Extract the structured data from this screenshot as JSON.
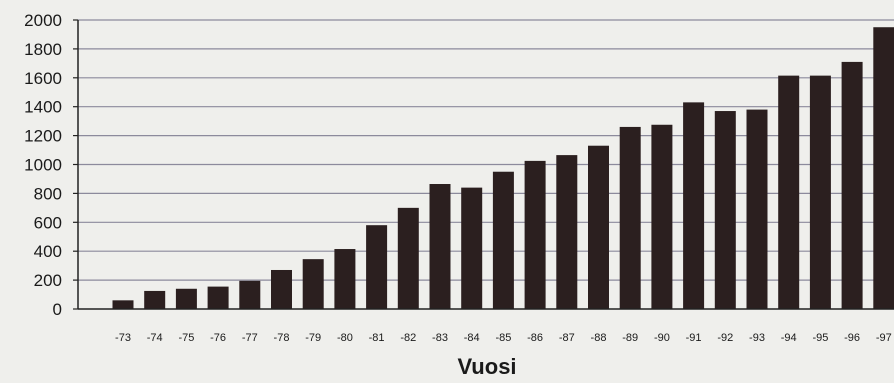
{
  "chart_data": {
    "type": "bar",
    "title": "",
    "xlabel": "Vuosi",
    "ylabel": "",
    "ylim": [
      0,
      2000
    ],
    "yticks": [
      0,
      200,
      400,
      600,
      800,
      1000,
      1200,
      1400,
      1600,
      1800,
      2000
    ],
    "grid": true,
    "categories": [
      "-73",
      "-74",
      "-75",
      "-76",
      "-77",
      "-78",
      "-79",
      "-80",
      "-81",
      "-82",
      "-83",
      "-84",
      "-85",
      "-86",
      "-87",
      "-88",
      "-89",
      "-90",
      "-91",
      "-92",
      "-93",
      "-94",
      "-95",
      "-96",
      "-97"
    ],
    "values": [
      60,
      125,
      140,
      155,
      195,
      270,
      345,
      415,
      580,
      700,
      865,
      840,
      950,
      1025,
      1065,
      1130,
      1260,
      1275,
      1430,
      1370,
      1380,
      1615,
      1615,
      1710,
      1950
    ],
    "colors": {
      "bar": "#2b1f1f",
      "grid": "#8c8a9c",
      "axis": "#222222",
      "background": "#efefec"
    }
  }
}
